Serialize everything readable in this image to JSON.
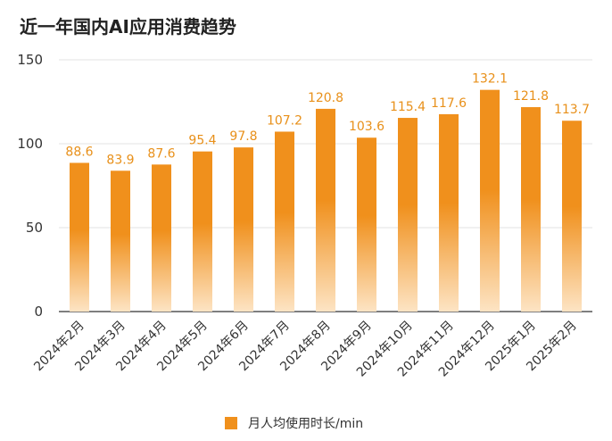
{
  "chart_data": {
    "type": "bar",
    "title": "近一年国内AI应用消费趋势",
    "categories": [
      "2024年2月",
      "2024年3月",
      "2024年4月",
      "2024年5月",
      "2024年6月",
      "2024年7月",
      "2024年8月",
      "2024年9月",
      "2024年10月",
      "2024年11月",
      "2024年12月",
      "2025年1月",
      "2025年2月"
    ],
    "series": [
      {
        "name": "月人均使用时长/min",
        "values": [
          88.6,
          83.9,
          87.6,
          95.4,
          97.8,
          107.2,
          120.8,
          103.6,
          115.4,
          117.6,
          132.1,
          121.8,
          113.7
        ]
      }
    ],
    "ylim": [
      0,
      150
    ],
    "yticks": [
      0,
      50,
      100,
      150
    ],
    "grid": true,
    "legend_position": "bottom",
    "data_labels": true,
    "colors": {
      "bar_top": "#f0901c",
      "bar_bottom": "#fde4c4",
      "label": "#e8901a",
      "grid": "#e3e3e3",
      "axis": "#333333"
    }
  }
}
